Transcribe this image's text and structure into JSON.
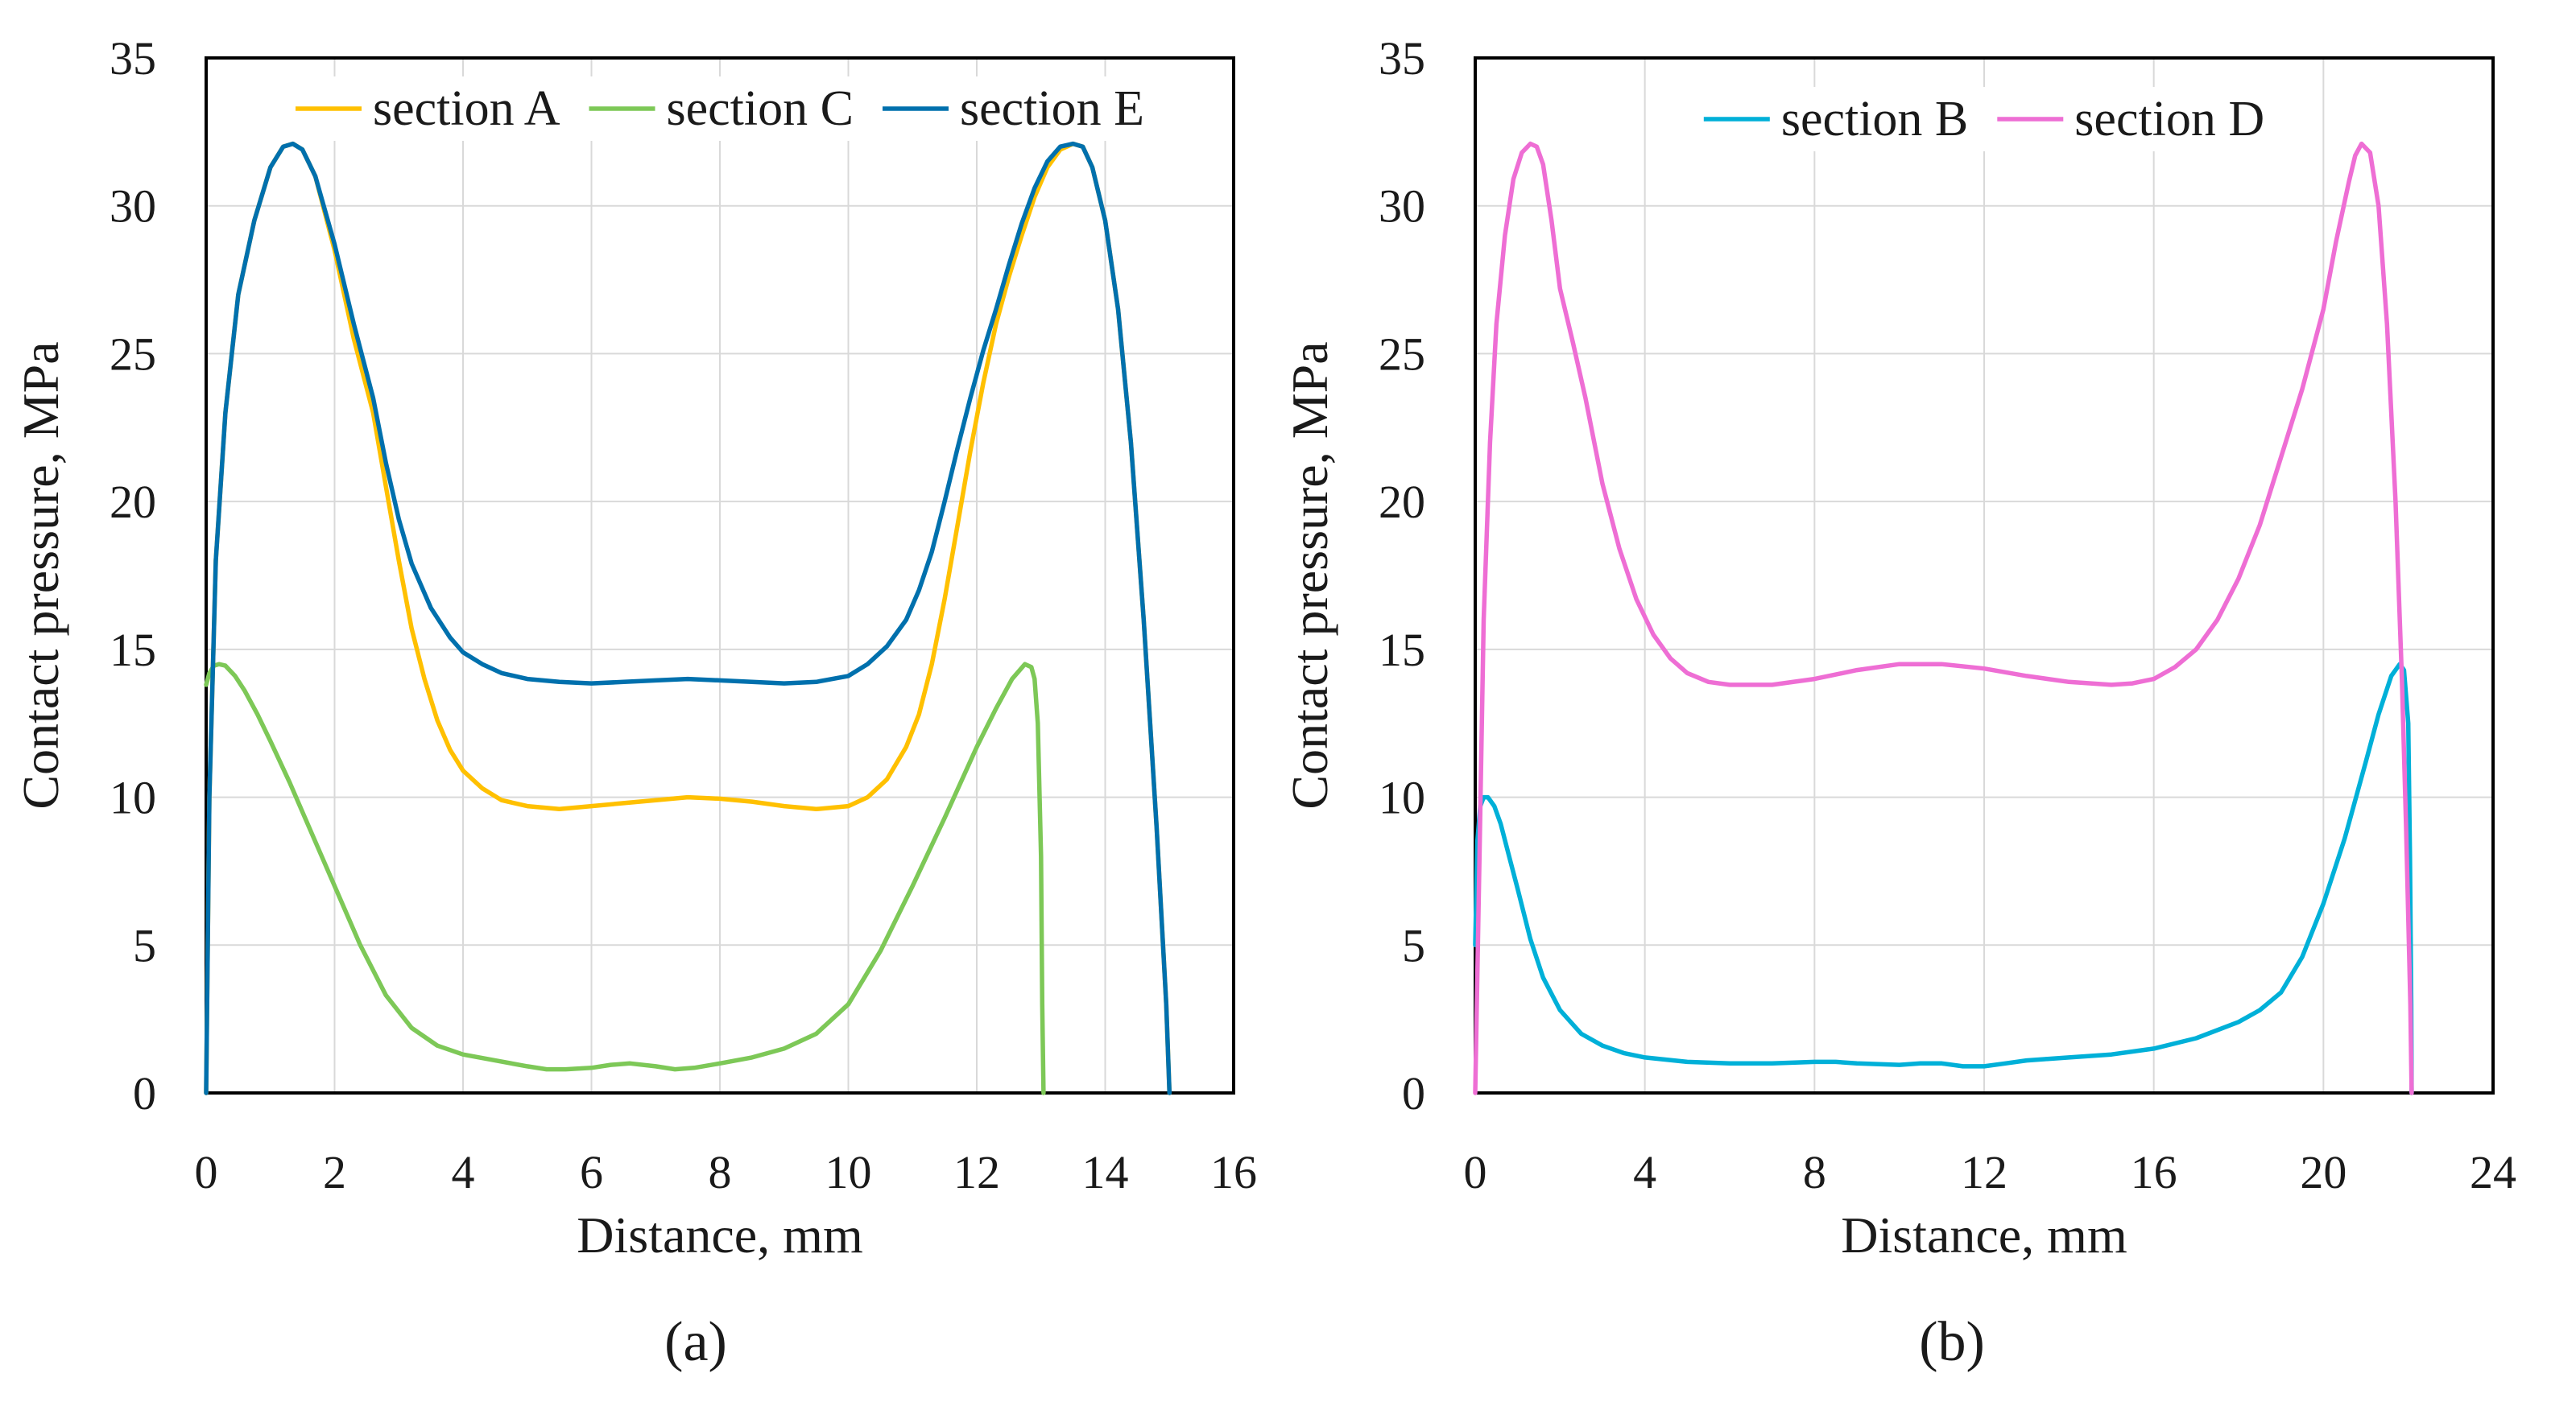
{
  "chart_data": [
    {
      "type": "line",
      "panel_label": "(a)",
      "xlabel": "Distance, mm",
      "ylabel": "Contact pressure, MPa",
      "xlim": [
        0,
        16
      ],
      "ylim": [
        0,
        35
      ],
      "xticks": [
        0,
        2,
        4,
        6,
        8,
        10,
        12,
        14,
        16
      ],
      "yticks": [
        0,
        5,
        10,
        15,
        20,
        25,
        30,
        35
      ],
      "grid": true,
      "legend_position": "top",
      "series": [
        {
          "name": "section A",
          "color": "#ffc000",
          "x": [
            0,
            0.05,
            0.15,
            0.3,
            0.5,
            0.75,
            1.0,
            1.2,
            1.35,
            1.5,
            1.7,
            2.0,
            2.3,
            2.6,
            2.8,
            3.0,
            3.2,
            3.4,
            3.6,
            3.8,
            4.0,
            4.3,
            4.6,
            5.0,
            5.5,
            6.0,
            6.5,
            7.0,
            7.5,
            8.0,
            8.5,
            9.0,
            9.5,
            10.0,
            10.3,
            10.6,
            10.9,
            11.1,
            11.3,
            11.5,
            11.7,
            11.9,
            12.1,
            12.3,
            12.5,
            12.7,
            12.9,
            13.1,
            13.3,
            13.5,
            13.65,
            13.8,
            14.0,
            14.2,
            14.4,
            14.6,
            14.8,
            14.95,
            15.0
          ],
          "y": [
            0,
            10,
            18,
            23,
            27,
            29.5,
            31.3,
            32,
            32.1,
            31.9,
            31,
            28.5,
            25.5,
            23,
            20.5,
            18,
            15.7,
            14,
            12.6,
            11.6,
            10.9,
            10.3,
            9.9,
            9.7,
            9.6,
            9.7,
            9.8,
            9.9,
            10.0,
            9.95,
            9.85,
            9.7,
            9.6,
            9.7,
            10.0,
            10.6,
            11.7,
            12.8,
            14.5,
            16.7,
            19.2,
            21.7,
            24,
            26,
            27.6,
            29,
            30.3,
            31.3,
            31.9,
            32.1,
            32.0,
            31.3,
            29.5,
            26.5,
            22,
            16,
            9,
            3,
            0
          ]
        },
        {
          "name": "section C",
          "color": "#7dc857",
          "x": [
            0,
            0.05,
            0.12,
            0.2,
            0.3,
            0.45,
            0.6,
            0.8,
            1.0,
            1.3,
            1.6,
            2.0,
            2.4,
            2.8,
            3.2,
            3.6,
            4.0,
            4.5,
            5.0,
            5.3,
            5.6,
            6.0,
            6.3,
            6.6,
            7.0,
            7.3,
            7.6,
            8.0,
            8.5,
            9.0,
            9.5,
            10.0,
            10.5,
            11.0,
            11.5,
            12.0,
            12.3,
            12.55,
            12.75,
            12.85,
            12.9,
            12.95,
            13.0,
            13.02,
            13.04
          ],
          "y": [
            13.8,
            14.2,
            14.45,
            14.5,
            14.45,
            14.1,
            13.6,
            12.8,
            11.9,
            10.5,
            9.0,
            7.0,
            5.0,
            3.3,
            2.2,
            1.6,
            1.3,
            1.1,
            0.9,
            0.8,
            0.8,
            0.85,
            0.95,
            1.0,
            0.9,
            0.8,
            0.85,
            1.0,
            1.2,
            1.5,
            2.0,
            3.0,
            4.8,
            7.0,
            9.3,
            11.7,
            13.0,
            14.0,
            14.5,
            14.4,
            14.0,
            12.5,
            8.0,
            3.0,
            0
          ]
        },
        {
          "name": "section E",
          "color": "#0070ad",
          "x": [
            0,
            0.05,
            0.15,
            0.3,
            0.5,
            0.75,
            1.0,
            1.2,
            1.35,
            1.5,
            1.7,
            2.0,
            2.3,
            2.6,
            2.8,
            3.0,
            3.2,
            3.5,
            3.8,
            4.0,
            4.3,
            4.6,
            5.0,
            5.5,
            6.0,
            6.5,
            7.0,
            7.5,
            8.0,
            8.5,
            9.0,
            9.5,
            10.0,
            10.3,
            10.6,
            10.9,
            11.1,
            11.3,
            11.5,
            11.7,
            11.9,
            12.1,
            12.3,
            12.5,
            12.7,
            12.9,
            13.1,
            13.3,
            13.5,
            13.65,
            13.8,
            14.0,
            14.2,
            14.4,
            14.6,
            14.8,
            14.95,
            15.0
          ],
          "y": [
            0,
            10,
            18,
            23,
            27,
            29.5,
            31.3,
            32,
            32.1,
            31.9,
            31,
            28.7,
            26,
            23.5,
            21.3,
            19.4,
            17.9,
            16.4,
            15.4,
            14.9,
            14.5,
            14.2,
            14.0,
            13.9,
            13.85,
            13.9,
            13.95,
            14.0,
            13.95,
            13.9,
            13.85,
            13.9,
            14.1,
            14.5,
            15.1,
            16.0,
            17.0,
            18.3,
            20.0,
            21.8,
            23.5,
            25.1,
            26.5,
            28.0,
            29.4,
            30.6,
            31.5,
            32.0,
            32.1,
            32.0,
            31.3,
            29.5,
            26.5,
            22,
            16,
            9,
            3,
            0
          ]
        }
      ]
    },
    {
      "type": "line",
      "panel_label": "(b)",
      "xlabel": "Distance, mm",
      "ylabel": "Contact pressure, MPa",
      "xlim": [
        0,
        24
      ],
      "ylim": [
        0,
        35
      ],
      "xticks": [
        0,
        4,
        8,
        12,
        16,
        20,
        24
      ],
      "yticks": [
        0,
        5,
        10,
        15,
        20,
        25,
        30,
        35
      ],
      "grid": true,
      "legend_position": "top",
      "series": [
        {
          "name": "section B",
          "color": "#00b0d8",
          "x": [
            0,
            0.05,
            0.12,
            0.2,
            0.3,
            0.45,
            0.6,
            0.8,
            1.0,
            1.3,
            1.6,
            2.0,
            2.5,
            3.0,
            3.5,
            4.0,
            5.0,
            6.0,
            7.0,
            8.0,
            8.5,
            9.0,
            10.0,
            10.5,
            11.0,
            11.5,
            12.0,
            12.5,
            13.0,
            13.5,
            14.0,
            15.0,
            16.0,
            17.0,
            18.0,
            18.5,
            19.0,
            19.5,
            20.0,
            20.5,
            21.0,
            21.3,
            21.6,
            21.8,
            21.9,
            22.0,
            22.04,
            22.07,
            22.08
          ],
          "y": [
            5,
            8.5,
            9.7,
            10.0,
            10.0,
            9.7,
            9.1,
            8.0,
            6.9,
            5.2,
            3.9,
            2.8,
            2.0,
            1.6,
            1.35,
            1.2,
            1.05,
            1.0,
            1.0,
            1.05,
            1.05,
            1.0,
            0.95,
            1.0,
            1.0,
            0.9,
            0.9,
            1.0,
            1.1,
            1.15,
            1.2,
            1.3,
            1.5,
            1.85,
            2.4,
            2.8,
            3.4,
            4.6,
            6.4,
            8.6,
            11.2,
            12.8,
            14.1,
            14.5,
            14.3,
            12.5,
            8.0,
            3.0,
            0
          ]
        },
        {
          "name": "section D",
          "color": "#ee6ed4",
          "x": [
            0,
            0.1,
            0.2,
            0.35,
            0.5,
            0.7,
            0.9,
            1.1,
            1.3,
            1.45,
            1.6,
            1.8,
            2.0,
            2.3,
            2.6,
            3.0,
            3.4,
            3.8,
            4.2,
            4.6,
            5.0,
            5.5,
            6.0,
            7.0,
            8.0,
            9.0,
            10.0,
            11.0,
            12.0,
            13.0,
            14.0,
            15.0,
            15.5,
            16.0,
            16.5,
            17.0,
            17.5,
            18.0,
            18.5,
            19.0,
            19.5,
            20.0,
            20.3,
            20.6,
            20.75,
            20.9,
            21.1,
            21.3,
            21.5,
            21.7,
            21.85,
            21.95,
            22.05,
            22.08
          ],
          "y": [
            0,
            8,
            16,
            22,
            26,
            29,
            30.9,
            31.8,
            32.1,
            32.0,
            31.4,
            29.5,
            27.2,
            25.4,
            23.5,
            20.6,
            18.4,
            16.7,
            15.5,
            14.7,
            14.2,
            13.9,
            13.8,
            13.8,
            14.0,
            14.3,
            14.5,
            14.5,
            14.35,
            14.1,
            13.9,
            13.8,
            13.85,
            14.0,
            14.4,
            15.0,
            16.0,
            17.4,
            19.2,
            21.5,
            23.8,
            26.5,
            28.8,
            30.8,
            31.7,
            32.1,
            31.8,
            30.0,
            26.0,
            20.0,
            14.0,
            9.0,
            3.0,
            0
          ]
        }
      ]
    }
  ]
}
